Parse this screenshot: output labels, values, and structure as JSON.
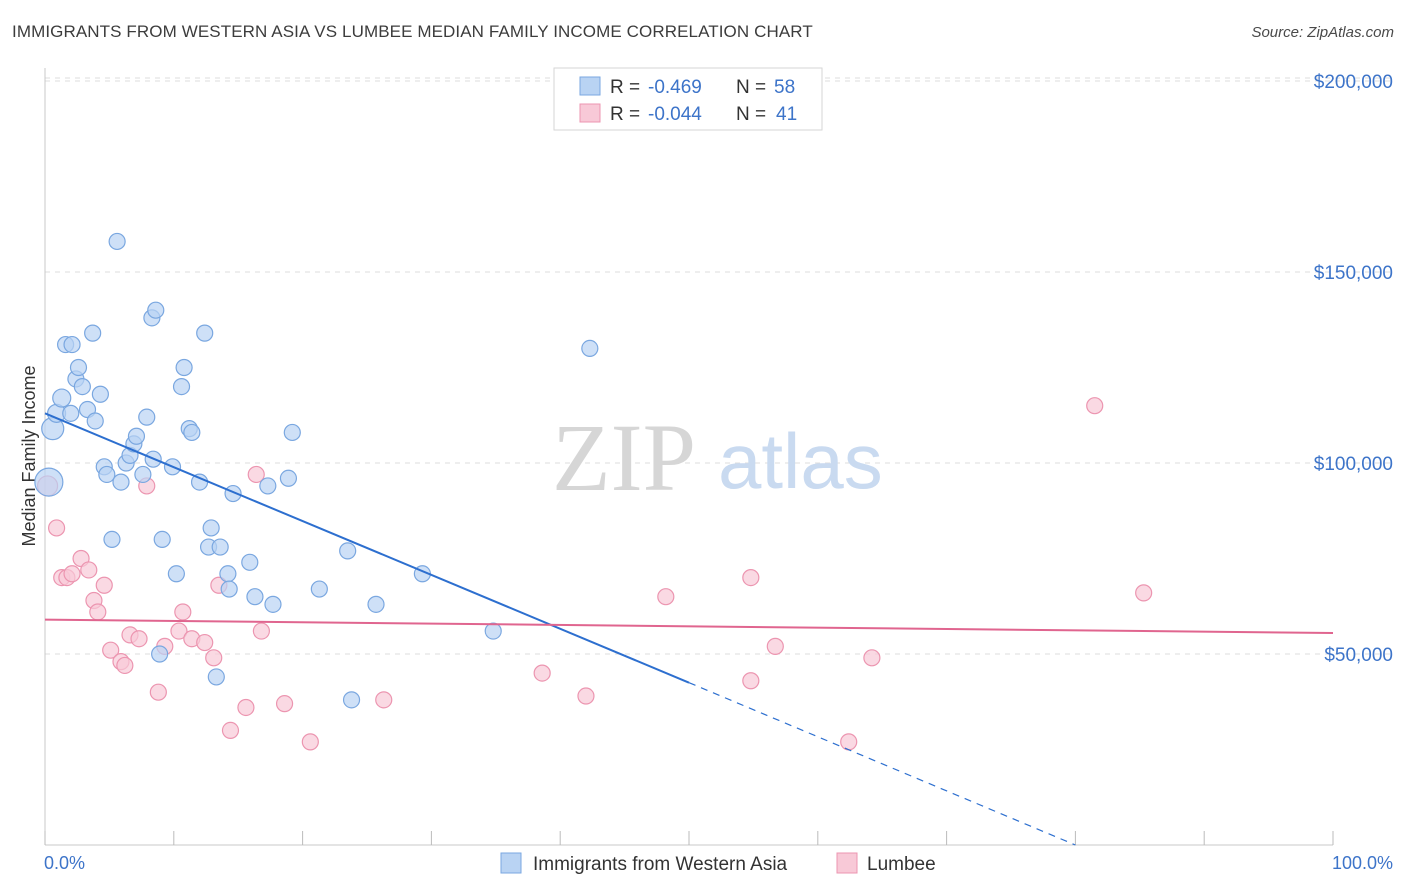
{
  "title": "IMMIGRANTS FROM WESTERN ASIA VS LUMBEE MEDIAN FAMILY INCOME CORRELATION CHART",
  "source": "Source: ZipAtlas.com",
  "watermark": {
    "zip": "ZIP",
    "atlas": "atlas"
  },
  "colors": {
    "blue_fill": "#b9d3f3",
    "blue_stroke": "#7aa7e0",
    "blue_line": "#2d6fcf",
    "pink_fill": "#f8c9d7",
    "pink_stroke": "#ec95b0",
    "pink_line": "#e0658f",
    "axis_text": "#3d74c9",
    "grid": "#dddddd"
  },
  "legend": {
    "rows": [
      {
        "r_label": "R =",
        "r_value": "-0.469",
        "n_label": "N =",
        "n_value": "58"
      },
      {
        "r_label": "R =",
        "r_value": "-0.044",
        "n_label": "N =",
        "n_value": "41"
      }
    ]
  },
  "bottom_legend": [
    "Immigrants from Western Asia",
    "Lumbee"
  ],
  "chart_data": {
    "type": "scatter",
    "title": "IMMIGRANTS FROM WESTERN ASIA VS LUMBEE MEDIAN FAMILY INCOME CORRELATION CHART",
    "xlabel": "",
    "ylabel": "Median Family Income",
    "xlim": [
      0,
      100
    ],
    "ylim": [
      0,
      200000
    ],
    "x_tick_labels": [
      "0.0%",
      "100.0%"
    ],
    "y_ticks": [
      50000,
      100000,
      150000,
      200000
    ],
    "y_tick_labels": [
      "$50,000",
      "$100,000",
      "$150,000",
      "$200,000"
    ],
    "grid": true,
    "legend_position": "top-center",
    "series": [
      {
        "name": "Immigrants from Western Asia",
        "color": "#b9d3f3",
        "points": [
          [
            0.3,
            95000,
            14
          ],
          [
            0.6,
            109000,
            11
          ],
          [
            0.9,
            113000,
            9
          ],
          [
            1.3,
            117000,
            9
          ],
          [
            1.6,
            131000,
            8
          ],
          [
            2.0,
            113000,
            8
          ],
          [
            2.1,
            131000,
            8
          ],
          [
            2.4,
            122000,
            8
          ],
          [
            2.6,
            125000,
            8
          ],
          [
            2.9,
            120000,
            8
          ],
          [
            3.3,
            114000,
            8
          ],
          [
            3.7,
            134000,
            8
          ],
          [
            3.9,
            111000,
            8
          ],
          [
            4.3,
            118000,
            8
          ],
          [
            4.6,
            99000,
            8
          ],
          [
            4.8,
            97000,
            8
          ],
          [
            5.2,
            80000,
            8
          ],
          [
            5.6,
            158000,
            8
          ],
          [
            5.9,
            95000,
            8
          ],
          [
            6.3,
            100000,
            8
          ],
          [
            6.6,
            102000,
            8
          ],
          [
            6.9,
            105000,
            8
          ],
          [
            7.1,
            107000,
            8
          ],
          [
            7.6,
            97000,
            8
          ],
          [
            7.9,
            112000,
            8
          ],
          [
            8.3,
            138000,
            8
          ],
          [
            8.4,
            101000,
            8
          ],
          [
            8.6,
            140000,
            8
          ],
          [
            8.9,
            50000,
            8
          ],
          [
            9.1,
            80000,
            8
          ],
          [
            9.9,
            99000,
            8
          ],
          [
            10.2,
            71000,
            8
          ],
          [
            10.6,
            120000,
            8
          ],
          [
            10.8,
            125000,
            8
          ],
          [
            11.2,
            109000,
            8
          ],
          [
            11.4,
            108000,
            8
          ],
          [
            12.0,
            95000,
            8
          ],
          [
            12.4,
            134000,
            8
          ],
          [
            12.7,
            78000,
            8
          ],
          [
            12.9,
            83000,
            8
          ],
          [
            13.3,
            44000,
            8
          ],
          [
            13.6,
            78000,
            8
          ],
          [
            14.2,
            71000,
            8
          ],
          [
            14.3,
            67000,
            8
          ],
          [
            14.6,
            92000,
            8
          ],
          [
            15.9,
            74000,
            8
          ],
          [
            16.3,
            65000,
            8
          ],
          [
            17.3,
            94000,
            8
          ],
          [
            17.7,
            63000,
            8
          ],
          [
            18.9,
            96000,
            8
          ],
          [
            19.2,
            108000,
            8
          ],
          [
            21.3,
            67000,
            8
          ],
          [
            23.5,
            77000,
            8
          ],
          [
            23.8,
            38000,
            8
          ],
          [
            25.7,
            63000,
            8
          ],
          [
            29.3,
            71000,
            8
          ],
          [
            34.8,
            56000,
            8
          ],
          [
            42.3,
            130000,
            8
          ]
        ],
        "trend": {
          "x": [
            0.0,
            50.0
          ],
          "y": [
            113000,
            42500
          ],
          "dashed_extension": {
            "x": [
              50.0,
              80.0
            ],
            "y": [
              42500,
              0
            ]
          }
        }
      },
      {
        "name": "Lumbee",
        "color": "#f8c9d7",
        "points": [
          [
            0.2,
            94000,
            10
          ],
          [
            0.9,
            83000,
            8
          ],
          [
            1.3,
            70000,
            8
          ],
          [
            1.7,
            70000,
            8
          ],
          [
            2.1,
            71000,
            8
          ],
          [
            2.8,
            75000,
            8
          ],
          [
            3.4,
            72000,
            8
          ],
          [
            3.8,
            64000,
            8
          ],
          [
            4.1,
            61000,
            8
          ],
          [
            4.6,
            68000,
            8
          ],
          [
            5.1,
            51000,
            8
          ],
          [
            5.9,
            48000,
            8
          ],
          [
            6.2,
            47000,
            8
          ],
          [
            6.6,
            55000,
            8
          ],
          [
            7.3,
            54000,
            8
          ],
          [
            7.9,
            94000,
            8
          ],
          [
            8.8,
            40000,
            8
          ],
          [
            9.3,
            52000,
            8
          ],
          [
            10.4,
            56000,
            8
          ],
          [
            10.7,
            61000,
            8
          ],
          [
            11.4,
            54000,
            8
          ],
          [
            12.4,
            53000,
            8
          ],
          [
            13.1,
            49000,
            8
          ],
          [
            13.5,
            68000,
            8
          ],
          [
            14.4,
            30000,
            8
          ],
          [
            15.6,
            36000,
            8
          ],
          [
            16.4,
            97000,
            8
          ],
          [
            16.8,
            56000,
            8
          ],
          [
            18.6,
            37000,
            8
          ],
          [
            20.6,
            27000,
            8
          ],
          [
            26.3,
            38000,
            8
          ],
          [
            38.6,
            45000,
            8
          ],
          [
            42.0,
            39000,
            8
          ],
          [
            48.2,
            65000,
            8
          ],
          [
            54.8,
            70000,
            8
          ],
          [
            54.8,
            43000,
            8
          ],
          [
            56.7,
            52000,
            8
          ],
          [
            62.4,
            27000,
            8
          ],
          [
            64.2,
            49000,
            8
          ],
          [
            81.5,
            115000,
            8
          ],
          [
            85.3,
            66000,
            8
          ]
        ],
        "trend": {
          "x": [
            0.0,
            100.0
          ],
          "y": [
            59000,
            55500
          ]
        }
      }
    ]
  }
}
